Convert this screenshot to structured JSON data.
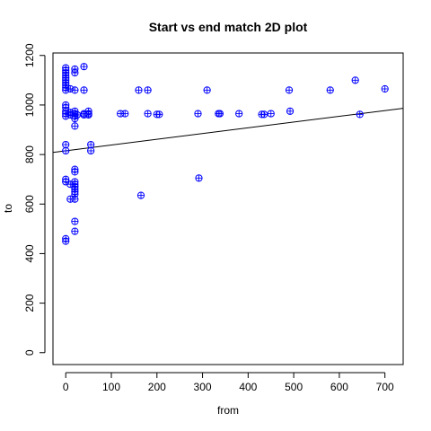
{
  "chart_data": {
    "type": "scatter",
    "title": "Start vs end match 2D plot",
    "xlabel": "from",
    "ylabel": "to",
    "xlim": [
      -28,
      740
    ],
    "ylim": [
      -48,
      1210
    ],
    "xticks": [
      0,
      100,
      200,
      300,
      400,
      500,
      600,
      700
    ],
    "yticks": [
      0,
      200,
      400,
      600,
      800,
      1000,
      1200
    ],
    "grid": false,
    "legend": "none",
    "colors": {
      "points": "#0000ff",
      "line": "#000000",
      "axes": "#000000"
    },
    "marker": "circle-plus",
    "regression_line": {
      "intercept": 815,
      "slope": 0.232
    },
    "points": [
      [
        0,
        1150
      ],
      [
        0,
        1140
      ],
      [
        0,
        1130
      ],
      [
        0,
        1120
      ],
      [
        0,
        1110
      ],
      [
        0,
        1100
      ],
      [
        0,
        1090
      ],
      [
        0,
        1080
      ],
      [
        0,
        1070
      ],
      [
        0,
        1060
      ],
      [
        0,
        1000
      ],
      [
        0,
        990
      ],
      [
        0,
        975
      ],
      [
        0,
        965
      ],
      [
        0,
        955
      ],
      [
        0,
        840
      ],
      [
        0,
        815
      ],
      [
        0,
        700
      ],
      [
        0,
        690
      ],
      [
        0,
        460
      ],
      [
        0,
        450
      ],
      [
        10,
        1065
      ],
      [
        10,
        970
      ],
      [
        10,
        960
      ],
      [
        10,
        680
      ],
      [
        10,
        620
      ],
      [
        20,
        1145
      ],
      [
        20,
        1130
      ],
      [
        20,
        1060
      ],
      [
        20,
        975
      ],
      [
        20,
        965
      ],
      [
        20,
        955
      ],
      [
        20,
        945
      ],
      [
        20,
        915
      ],
      [
        20,
        740
      ],
      [
        20,
        730
      ],
      [
        20,
        690
      ],
      [
        20,
        680
      ],
      [
        20,
        670
      ],
      [
        20,
        660
      ],
      [
        20,
        650
      ],
      [
        20,
        640
      ],
      [
        20,
        620
      ],
      [
        20,
        530
      ],
      [
        20,
        490
      ],
      [
        25,
        960
      ],
      [
        40,
        1155
      ],
      [
        40,
        1060
      ],
      [
        40,
        965
      ],
      [
        40,
        960
      ],
      [
        50,
        975
      ],
      [
        50,
        965
      ],
      [
        50,
        960
      ],
      [
        55,
        840
      ],
      [
        55,
        815
      ],
      [
        120,
        965
      ],
      [
        130,
        965
      ],
      [
        160,
        1060
      ],
      [
        165,
        635
      ],
      [
        180,
        1060
      ],
      [
        180,
        965
      ],
      [
        200,
        962
      ],
      [
        205,
        962
      ],
      [
        290,
        965
      ],
      [
        292,
        705
      ],
      [
        310,
        1060
      ],
      [
        335,
        965
      ],
      [
        338,
        965
      ],
      [
        380,
        965
      ],
      [
        430,
        962
      ],
      [
        435,
        962
      ],
      [
        450,
        965
      ],
      [
        490,
        1060
      ],
      [
        492,
        975
      ],
      [
        580,
        1060
      ],
      [
        635,
        1100
      ],
      [
        645,
        962
      ],
      [
        700,
        1065
      ]
    ]
  }
}
